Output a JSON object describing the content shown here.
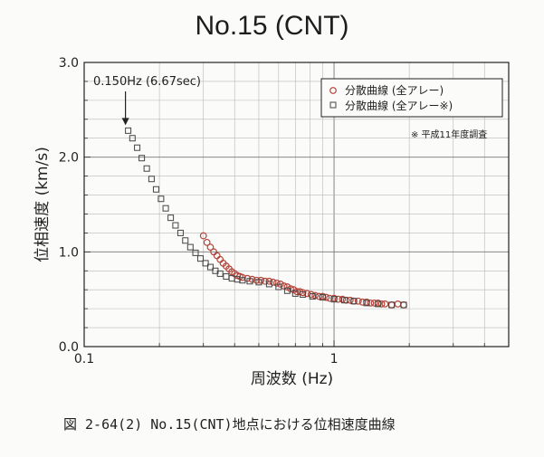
{
  "chart_data": {
    "type": "scatter",
    "title": "No.15 (CNT)",
    "xlabel": "周波数 (Hz)",
    "ylabel": "位相速度 (km/s)",
    "x_scale": "log",
    "xlim": [
      0.1,
      5
    ],
    "ylim": [
      0,
      3
    ],
    "x_ticks": [
      0.1,
      1
    ],
    "x_tick_labels": [
      "0.1",
      "1"
    ],
    "y_ticks": [
      0,
      1,
      2,
      3
    ],
    "y_tick_labels": [
      "0.0",
      "1.0",
      "2.0",
      "3.0"
    ],
    "grid": true,
    "legend_position": "top-right",
    "series": [
      {
        "name": "分散曲線 (全アレー)",
        "marker": "circle",
        "color": "#b3453a",
        "points": [
          [
            0.3,
            1.17
          ],
          [
            0.31,
            1.1
          ],
          [
            0.32,
            1.05
          ],
          [
            0.33,
            1.0
          ],
          [
            0.34,
            0.96
          ],
          [
            0.35,
            0.92
          ],
          [
            0.36,
            0.88
          ],
          [
            0.37,
            0.85
          ],
          [
            0.38,
            0.82
          ],
          [
            0.39,
            0.79
          ],
          [
            0.4,
            0.77
          ],
          [
            0.41,
            0.75
          ],
          [
            0.42,
            0.74
          ],
          [
            0.43,
            0.73
          ],
          [
            0.45,
            0.72
          ],
          [
            0.47,
            0.71
          ],
          [
            0.49,
            0.7
          ],
          [
            0.51,
            0.7
          ],
          [
            0.53,
            0.69
          ],
          [
            0.55,
            0.69
          ],
          [
            0.57,
            0.68
          ],
          [
            0.59,
            0.67
          ],
          [
            0.61,
            0.66
          ],
          [
            0.63,
            0.64
          ],
          [
            0.65,
            0.63
          ],
          [
            0.67,
            0.61
          ],
          [
            0.69,
            0.6
          ],
          [
            0.71,
            0.58
          ],
          [
            0.73,
            0.58
          ],
          [
            0.75,
            0.57
          ],
          [
            0.78,
            0.56
          ],
          [
            0.81,
            0.55
          ],
          [
            0.84,
            0.54
          ],
          [
            0.87,
            0.53
          ],
          [
            0.9,
            0.53
          ],
          [
            0.93,
            0.52
          ],
          [
            0.96,
            0.51
          ],
          [
            1.0,
            0.51
          ],
          [
            1.04,
            0.5
          ],
          [
            1.08,
            0.5
          ],
          [
            1.12,
            0.49
          ],
          [
            1.16,
            0.49
          ],
          [
            1.2,
            0.48
          ],
          [
            1.25,
            0.48
          ],
          [
            1.3,
            0.47
          ],
          [
            1.35,
            0.47
          ],
          [
            1.4,
            0.46
          ],
          [
            1.45,
            0.46
          ],
          [
            1.5,
            0.46
          ],
          [
            1.55,
            0.45
          ],
          [
            1.6,
            0.45
          ],
          [
            1.7,
            0.44
          ],
          [
            1.8,
            0.45
          ],
          [
            1.9,
            0.44
          ]
        ]
      },
      {
        "name": "分散曲線 (全アレー※)",
        "marker": "square",
        "color": "#444444",
        "points": [
          [
            0.15,
            2.28
          ],
          [
            0.156,
            2.2
          ],
          [
            0.163,
            2.1
          ],
          [
            0.17,
            1.99
          ],
          [
            0.178,
            1.88
          ],
          [
            0.186,
            1.77
          ],
          [
            0.194,
            1.66
          ],
          [
            0.203,
            1.56
          ],
          [
            0.212,
            1.46
          ],
          [
            0.222,
            1.36
          ],
          [
            0.232,
            1.28
          ],
          [
            0.243,
            1.2
          ],
          [
            0.254,
            1.12
          ],
          [
            0.266,
            1.05
          ],
          [
            0.279,
            0.99
          ],
          [
            0.292,
            0.93
          ],
          [
            0.306,
            0.88
          ],
          [
            0.32,
            0.84
          ],
          [
            0.335,
            0.8
          ],
          [
            0.35,
            0.77
          ],
          [
            0.37,
            0.74
          ],
          [
            0.39,
            0.72
          ],
          [
            0.41,
            0.71
          ],
          [
            0.43,
            0.7
          ],
          [
            0.46,
            0.69
          ],
          [
            0.5,
            0.68
          ],
          [
            0.55,
            0.66
          ],
          [
            0.6,
            0.63
          ],
          [
            0.65,
            0.59
          ],
          [
            0.7,
            0.56
          ],
          [
            0.75,
            0.55
          ],
          [
            0.82,
            0.53
          ],
          [
            0.9,
            0.52
          ],
          [
            1.0,
            0.5
          ],
          [
            1.1,
            0.49
          ],
          [
            1.2,
            0.48
          ],
          [
            1.35,
            0.46
          ],
          [
            1.5,
            0.45
          ],
          [
            1.7,
            0.44
          ],
          [
            1.9,
            0.44
          ]
        ]
      }
    ],
    "annotations": [
      {
        "text": "0.150Hz (6.67sec)",
        "x": 0.15,
        "y": 2.28,
        "arrow": true
      },
      {
        "text": "※ 平成11年度調査"
      }
    ]
  },
  "caption": "図 2-64(2) No.15(CNT)地点における位相速度曲線"
}
